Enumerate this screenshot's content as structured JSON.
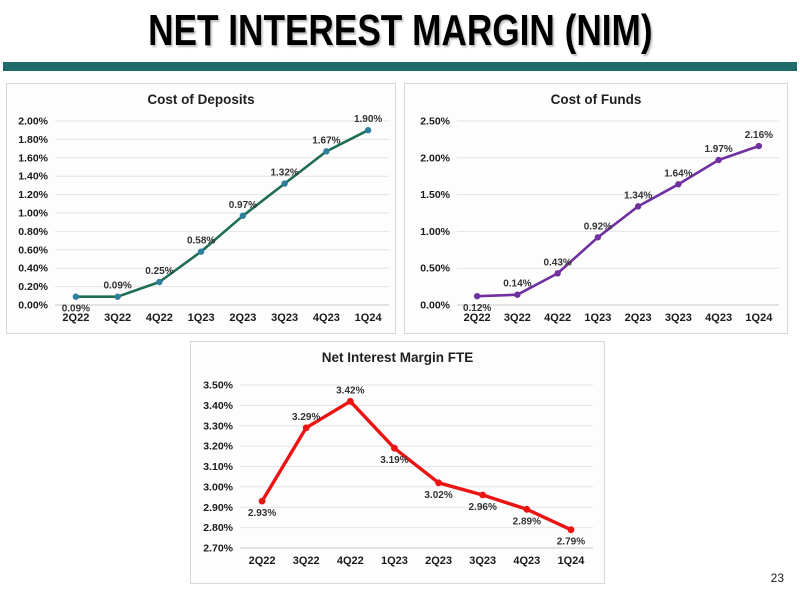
{
  "slide": {
    "title": "NET INTEREST MARGIN (NIM)",
    "page_number": "23",
    "accent_color": "#1e6c6a"
  },
  "chart_data": [
    {
      "id": "cost-of-deposits",
      "type": "line",
      "title": "Cost of Deposits",
      "categories": [
        "2Q22",
        "3Q22",
        "4Q22",
        "1Q23",
        "2Q23",
        "3Q23",
        "4Q23",
        "1Q24"
      ],
      "values": [
        0.09,
        0.09,
        0.25,
        0.58,
        0.97,
        1.32,
        1.67,
        1.9
      ],
      "labels": [
        "0.09%",
        "0.09%",
        "0.25%",
        "0.58%",
        "0.97%",
        "1.32%",
        "1.67%",
        "1.90%"
      ],
      "label_positions": [
        "below",
        "above",
        "above",
        "above",
        "above",
        "above",
        "above",
        "above"
      ],
      "y_ticks": [
        "2.00%",
        "1.80%",
        "1.60%",
        "1.40%",
        "1.20%",
        "1.00%",
        "0.80%",
        "0.60%",
        "0.40%",
        "0.20%",
        "0.00%"
      ],
      "ymin": 0.0,
      "ymax": 2.0,
      "grid": true,
      "legend": "none",
      "line_color": "#1f6d54",
      "marker_color": "#2e7f9e",
      "line_width": 2.6,
      "marker_radius": 3.2
    },
    {
      "id": "cost-of-funds",
      "type": "line",
      "title": "Cost of Funds",
      "categories": [
        "2Q22",
        "3Q22",
        "4Q22",
        "1Q23",
        "2Q23",
        "3Q23",
        "4Q23",
        "1Q24"
      ],
      "values": [
        0.12,
        0.14,
        0.43,
        0.92,
        1.34,
        1.64,
        1.97,
        2.16
      ],
      "labels": [
        "0.12%",
        "0.14%",
        "0.43%",
        "0.92%",
        "1.34%",
        "1.64%",
        "1.97%",
        "2.16%"
      ],
      "label_positions": [
        "below",
        "above",
        "above",
        "above",
        "above",
        "above",
        "above",
        "above"
      ],
      "y_ticks": [
        "2.50%",
        "2.00%",
        "1.50%",
        "1.00%",
        "0.50%",
        "0.00%"
      ],
      "ymin": 0.0,
      "ymax": 2.5,
      "grid": true,
      "legend": "none",
      "line_color": "#7030a0",
      "marker_color": "#7030a0",
      "line_width": 2.6,
      "marker_radius": 3.2
    },
    {
      "id": "net-interest-margin-fte",
      "type": "line",
      "title": "Net Interest Margin FTE",
      "categories": [
        "2Q22",
        "3Q22",
        "4Q22",
        "1Q23",
        "2Q23",
        "3Q23",
        "4Q23",
        "1Q24"
      ],
      "values": [
        2.93,
        3.29,
        3.42,
        3.19,
        3.02,
        2.96,
        2.89,
        2.79
      ],
      "labels": [
        "2.93%",
        "3.29%",
        "3.42%",
        "3.19%",
        "3.02%",
        "2.96%",
        "2.89%",
        "2.79%"
      ],
      "label_positions": [
        "below",
        "above",
        "above",
        "below",
        "below",
        "below",
        "below",
        "below"
      ],
      "y_ticks": [
        "3.50%",
        "3.40%",
        "3.30%",
        "3.20%",
        "3.10%",
        "3.00%",
        "2.90%",
        "2.80%",
        "2.70%"
      ],
      "ymin": 2.7,
      "ymax": 3.5,
      "grid": true,
      "legend": "none",
      "line_color": "#ec1313",
      "marker_color": "#ec1313",
      "line_width": 3.4,
      "marker_radius": 3.4
    }
  ]
}
